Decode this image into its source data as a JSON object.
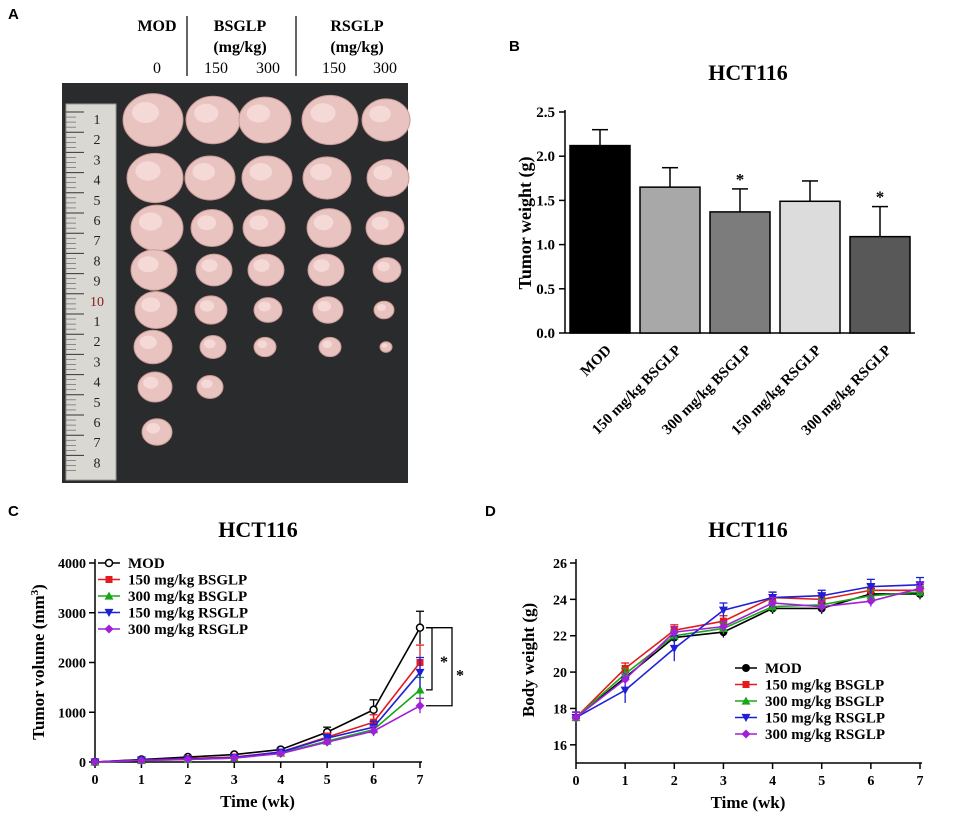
{
  "panel_letters": {
    "a": "A",
    "b": "B",
    "c": "C",
    "d": "D"
  },
  "panel_a": {
    "group_mod": "MOD",
    "group_bsglp": "BSGLP",
    "group_rsglp": "RSGLP",
    "unit": "(mg/kg)",
    "doses": [
      "0",
      "150",
      "300",
      "150",
      "300"
    ],
    "ruler_labels": [
      "1",
      "2",
      "3",
      "4",
      "5",
      "6",
      "7",
      "8",
      "9",
      "10",
      "1",
      "2",
      "3",
      "4",
      "5",
      "6",
      "7",
      "8"
    ],
    "tumor_counts": [
      8,
      7,
      6,
      6,
      6
    ]
  },
  "chart_data": [
    {
      "id": "B",
      "type": "bar",
      "title": "HCT116",
      "ylabel": "Tumor weight (g)",
      "xlabel": "",
      "ylim": [
        0,
        2.5
      ],
      "yticks": [
        "0.0",
        "0.5",
        "1.0",
        "1.5",
        "2.0",
        "2.5"
      ],
      "categories": [
        "MOD",
        "150 mg/kg BSGLP",
        "300 mg/kg BSGLP",
        "150 mg/kg RSGLP",
        "300 mg/kg RSGLP"
      ],
      "values": [
        2.12,
        1.65,
        1.37,
        1.49,
        1.09
      ],
      "errors": [
        0.18,
        0.22,
        0.26,
        0.23,
        0.34
      ],
      "colors": [
        "#000000",
        "#a8a8a8",
        "#7c7c7c",
        "#dcdcdc",
        "#585858"
      ],
      "significance": [
        "",
        "",
        "*",
        "",
        "*"
      ]
    },
    {
      "id": "C",
      "type": "line",
      "title": "HCT116",
      "xlabel": "Time (wk)",
      "ylabel_main": "Tumor volume (mm",
      "ylabel_sup": "3",
      "ylabel_close": ")",
      "xlim": [
        0,
        7
      ],
      "ylim": [
        0,
        4000
      ],
      "xticks": [
        "0",
        "1",
        "2",
        "3",
        "4",
        "5",
        "6",
        "7"
      ],
      "yticks": [
        "0",
        "1000",
        "2000",
        "3000",
        "4000"
      ],
      "x": [
        0,
        1,
        2,
        3,
        4,
        5,
        6,
        7
      ],
      "series": [
        {
          "name": "MOD",
          "color": "#000000",
          "marker": "circle-open",
          "values": [
            0,
            50,
            100,
            150,
            250,
            600,
            1050,
            2700
          ],
          "errors": [
            0,
            10,
            20,
            20,
            30,
            100,
            200,
            330
          ]
        },
        {
          "name": "150 mg/kg BSGLP",
          "color": "#e41a1c",
          "marker": "square",
          "values": [
            0,
            40,
            70,
            100,
            200,
            500,
            800,
            2000
          ],
          "errors": [
            0,
            10,
            15,
            20,
            30,
            80,
            150,
            350
          ]
        },
        {
          "name": "300 mg/kg BSGLP",
          "color": "#1aa61a",
          "marker": "triangle-up",
          "values": [
            0,
            30,
            50,
            80,
            180,
            420,
            650,
            1450
          ],
          "errors": [
            0,
            10,
            15,
            20,
            30,
            60,
            100,
            250
          ]
        },
        {
          "name": "150 mg/kg RSGLP",
          "color": "#1f1fd6",
          "marker": "triangle-down",
          "values": [
            0,
            40,
            60,
            90,
            200,
            480,
            700,
            1800
          ],
          "errors": [
            0,
            10,
            15,
            20,
            30,
            70,
            120,
            300
          ]
        },
        {
          "name": "300 mg/kg RSGLP",
          "color": "#a020d8",
          "marker": "diamond",
          "values": [
            0,
            30,
            50,
            80,
            170,
            400,
            620,
            1130
          ],
          "errors": [
            0,
            10,
            15,
            20,
            30,
            60,
            100,
            150
          ]
        }
      ],
      "annotations": [
        "*",
        "*"
      ]
    },
    {
      "id": "D",
      "type": "line",
      "title": "HCT116",
      "xlabel": "Time (wk)",
      "ylabel": "Body weight (g)",
      "xlim": [
        0,
        7
      ],
      "ylim": [
        15,
        26
      ],
      "xticks": [
        "0",
        "1",
        "2",
        "3",
        "4",
        "5",
        "6",
        "7"
      ],
      "yticks": [
        "16",
        "18",
        "20",
        "22",
        "24",
        "26"
      ],
      "x": [
        0,
        1,
        2,
        3,
        4,
        5,
        6,
        7
      ],
      "series": [
        {
          "name": "MOD",
          "color": "#000000",
          "marker": "circle",
          "values": [
            17.5,
            19.7,
            21.9,
            22.2,
            23.5,
            23.5,
            24.3,
            24.3
          ],
          "errors": [
            0.3,
            0.3,
            0.3,
            0.3,
            0.3,
            0.3,
            0.3,
            0.3
          ]
        },
        {
          "name": "150 mg/kg BSGLP",
          "color": "#e41a1c",
          "marker": "square",
          "values": [
            17.5,
            20.2,
            22.3,
            22.8,
            24.1,
            24.0,
            24.5,
            24.5
          ],
          "errors": [
            0.3,
            0.3,
            0.3,
            0.3,
            0.3,
            0.3,
            0.3,
            0.3
          ]
        },
        {
          "name": "300 mg/kg BSGLP",
          "color": "#1aa61a",
          "marker": "triangle-up",
          "values": [
            17.5,
            19.9,
            22.0,
            22.4,
            23.6,
            23.7,
            24.2,
            24.4
          ],
          "errors": [
            0.3,
            0.3,
            0.3,
            0.3,
            0.3,
            0.3,
            0.3,
            0.3
          ]
        },
        {
          "name": "150 mg/kg RSGLP",
          "color": "#1f1fd6",
          "marker": "triangle-down",
          "values": [
            17.5,
            19.0,
            21.3,
            23.4,
            24.1,
            24.2,
            24.7,
            24.8
          ],
          "errors": [
            0.3,
            0.7,
            0.7,
            0.4,
            0.3,
            0.3,
            0.4,
            0.4
          ]
        },
        {
          "name": "300 mg/kg RSGLP",
          "color": "#a020d8",
          "marker": "diamond",
          "values": [
            17.5,
            19.6,
            22.2,
            22.5,
            23.8,
            23.6,
            23.9,
            24.6
          ],
          "errors": [
            0.3,
            0.3,
            0.3,
            0.3,
            0.3,
            0.3,
            0.3,
            0.3
          ]
        }
      ]
    }
  ]
}
